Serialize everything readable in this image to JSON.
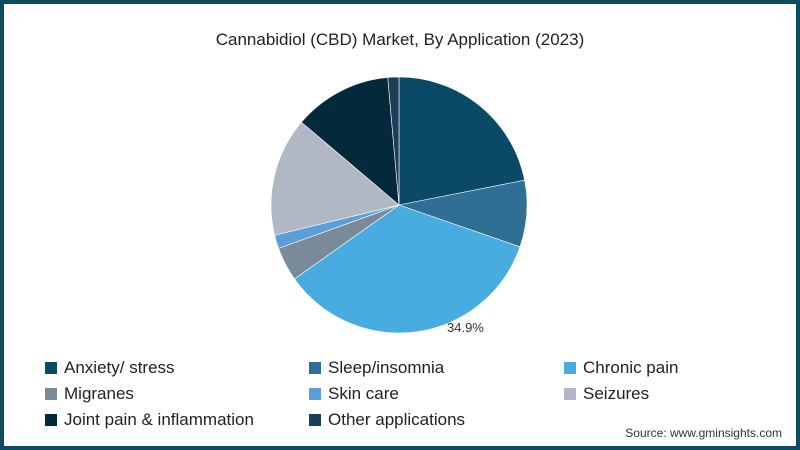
{
  "chart_data": {
    "type": "pie",
    "title": "Cannabidiol (CBD) Market, By Application (2023)",
    "categories": [
      "Anxiety/ stress",
      "Sleep/insomnia",
      "Chronic pain",
      "Migranes",
      "Skin care",
      "Seizures",
      "Joint pain & inflammation",
      "Other applications"
    ],
    "values": [
      21.9,
      8.4,
      34.9,
      4.3,
      1.7,
      15.0,
      12.4,
      1.4
    ],
    "colors": [
      "#0b4a66",
      "#2e6f93",
      "#48ace0",
      "#7b8a99",
      "#5b9fd8",
      "#b0b8c3",
      "#04293b",
      "#1b3f58"
    ],
    "data_labels": [
      {
        "category": "Chronic pain",
        "text": "34.9%"
      }
    ],
    "start_angle_deg": 0,
    "direction": "clockwise",
    "legend_position": "bottom"
  },
  "title": "Cannabidiol (CBD) Market, By Application (2023)",
  "slice_label": "34.9%",
  "legend": [
    {
      "label": "Anxiety/ stress",
      "color": "#0b4a66"
    },
    {
      "label": "Sleep/insomnia",
      "color": "#2e6f93"
    },
    {
      "label": "Chronic pain",
      "color": "#48ace0"
    },
    {
      "label": "Migranes",
      "color": "#7b8a99"
    },
    {
      "label": "Skin care",
      "color": "#5b9fd8"
    },
    {
      "label": "Seizures",
      "color": "#b0b8c3"
    },
    {
      "label": "Joint pain & inflammation",
      "color": "#04293b"
    },
    {
      "label": "Other applications",
      "color": "#1b3f58"
    }
  ],
  "source": "Source: www.gminsights.com",
  "frame_color": "#0d4a63"
}
